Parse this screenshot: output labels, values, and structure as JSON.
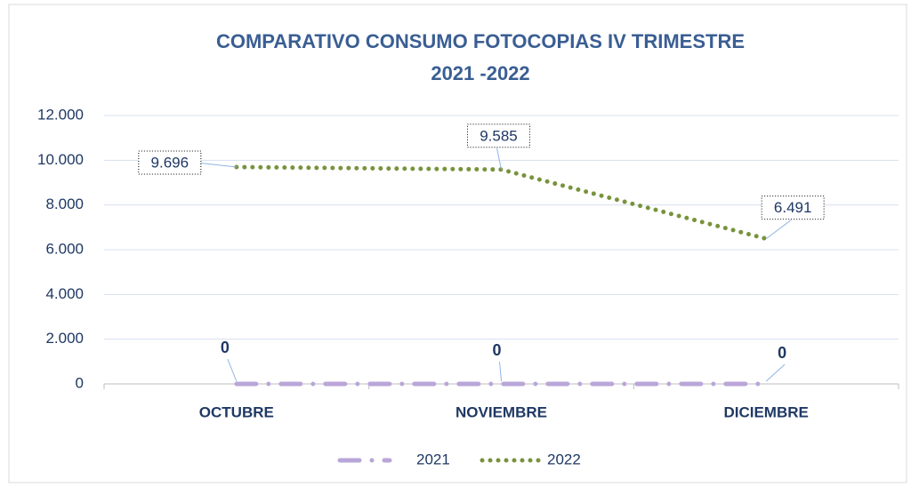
{
  "chart_data": {
    "type": "line",
    "title": [
      "COMPARATIVO CONSUMO FOTOCOPIAS IV TRIMESTRE",
      "2021 -2022"
    ],
    "categories": [
      "OCTUBRE",
      "NOVIEMBRE",
      "DICIEMBRE"
    ],
    "series": [
      {
        "name": "2021",
        "color": "#b9a6d8",
        "values": [
          0,
          0,
          0
        ],
        "value_labels": [
          "0",
          "0",
          "0"
        ]
      },
      {
        "name": "2022",
        "color": "#77933c",
        "values": [
          9696,
          9585,
          6491
        ],
        "value_labels": [
          "9.696",
          "9.585",
          "6.491"
        ]
      }
    ],
    "ylim": [
      0,
      12000
    ],
    "yticks": [
      0,
      {
        "value": 2000,
        "label": "2.000"
      },
      {
        "value": 4000,
        "label": "4.000"
      },
      {
        "value": 6000,
        "label": "6.000"
      },
      {
        "value": 8000,
        "label": "8.000"
      },
      {
        "value": 10000,
        "label": "10.000"
      },
      {
        "value": 12000,
        "label": "12.000"
      }
    ],
    "grid": true,
    "legend": "bottom"
  }
}
